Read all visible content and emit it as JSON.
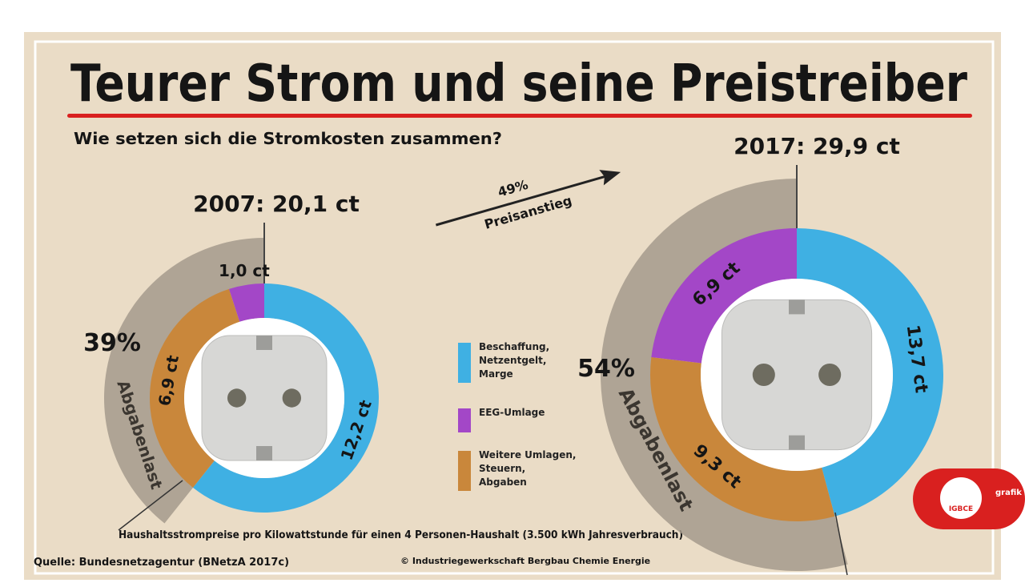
{
  "title": "Teurer Strom und seine Preistreiber",
  "subtitle": "Wie setzen sich die Stromkosten zusammen?",
  "increase": {
    "percent_label": "49%",
    "label": "Preisanstieg"
  },
  "chart_data": {
    "type": "donut",
    "categories": [
      "Beschaffung,\nNetzentgelt,\nMarge",
      "EEG-Umlage",
      "Weitere Umlagen,\nSteuern,\nAbgaben"
    ],
    "colors": [
      "#3fb0e3",
      "#a347c7",
      "#c9873b"
    ],
    "panels": [
      {
        "title": "2007: 20,1 ct",
        "values": [
          12.2,
          1.0,
          6.9
        ],
        "value_labels": [
          "12,2 ct",
          "1,0 ct",
          "6,9 ct"
        ],
        "share_label": "39%",
        "share_caption": "Abgabenlast"
      },
      {
        "title": "2017: 29,9 ct",
        "values": [
          13.7,
          6.9,
          9.3
        ],
        "value_labels": [
          "13,7 ct",
          "6,9 ct",
          "9,3 ct"
        ],
        "share_label": "54%",
        "share_caption": "Abgabenlast"
      }
    ]
  },
  "footnote": "Haushaltsstrompreise pro Kilowattstunde für einen 4 Personen-Haushalt (3.500 kWh Jahresverbrauch)",
  "source": "Quelle: Bundesnetzagentur (BNetzA 2017c)",
  "copyright": "© Industriegewerkschaft Bergbau Chemie Energie",
  "logo": {
    "name": "IGBCE",
    "tag": "grafik"
  }
}
